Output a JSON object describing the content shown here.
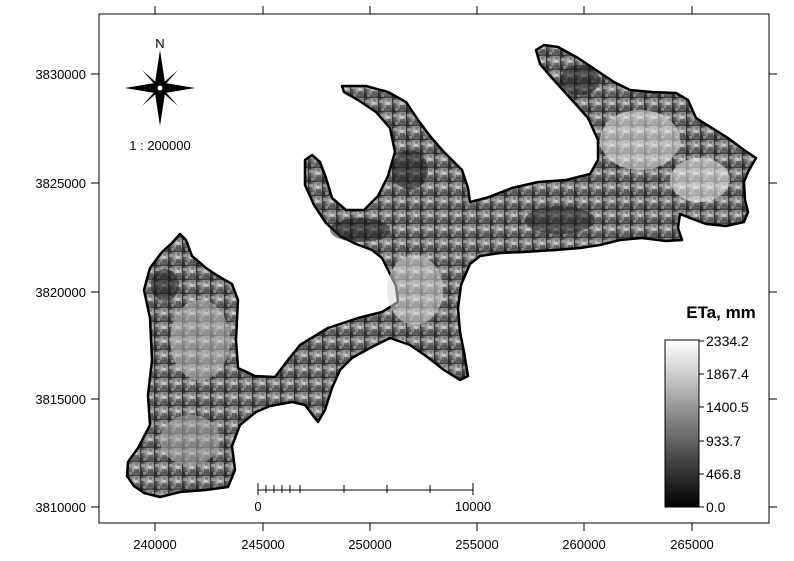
{
  "map": {
    "x_ticks": [
      "240000",
      "245000",
      "250000",
      "255000",
      "260000",
      "265000"
    ],
    "y_ticks": [
      "3830000",
      "3825000",
      "3820000",
      "3815000",
      "3810000"
    ],
    "north_label": "N",
    "scale_ratio": "1 : 200000",
    "scalebar": {
      "start_label": "0",
      "end_label": "10000"
    },
    "legend": {
      "title": "ETa, mm",
      "labels": [
        "2334.2",
        "1867.4",
        "1400.5",
        "933.7",
        "466.8",
        "0.0"
      ],
      "colors": {
        "high": "#ffffff",
        "low": "#000000"
      }
    },
    "icons": {
      "compass": "north-arrow-compass-icon"
    }
  }
}
